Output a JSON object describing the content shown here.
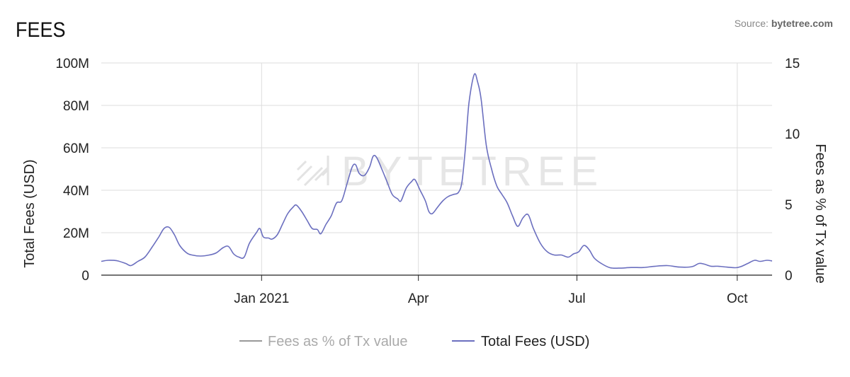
{
  "header": {
    "title": "FEES",
    "source_prefix": "Source: ",
    "source_brand": "bytetree.com"
  },
  "watermark": "BYTETREE",
  "colors": {
    "total_fees": "#6b6fbf",
    "fees_pct": "#999999",
    "grid": "#dddddd",
    "axis": "#222222"
  },
  "chart_data": {
    "type": "line",
    "title": "FEES",
    "xlabel": "",
    "ylabel": "Total Fees (USD)",
    "y2label": "Fees as % of Tx value",
    "xlim": [
      "2020-10-01",
      "2021-10-21"
    ],
    "ylim": [
      0,
      100000000
    ],
    "y2lim": [
      0,
      15
    ],
    "x_ticks": [
      {
        "date": "2021-01-01",
        "label": "Jan 2021"
      },
      {
        "date": "2021-04-01",
        "label": "Apr"
      },
      {
        "date": "2021-07-01",
        "label": "Jul"
      },
      {
        "date": "2021-10-01",
        "label": "Oct"
      }
    ],
    "y_ticks": [
      {
        "value": 0,
        "label": "0"
      },
      {
        "value": 20000000,
        "label": "20M"
      },
      {
        "value": 40000000,
        "label": "40M"
      },
      {
        "value": 60000000,
        "label": "60M"
      },
      {
        "value": 80000000,
        "label": "80M"
      },
      {
        "value": 100000000,
        "label": "100M"
      }
    ],
    "y2_ticks": [
      {
        "value": 0,
        "label": "0"
      },
      {
        "value": 5,
        "label": "5"
      },
      {
        "value": 10,
        "label": "10"
      },
      {
        "value": 15,
        "label": "15"
      }
    ],
    "grid": true,
    "legend_position": "bottom-center",
    "series": [
      {
        "name": "Fees as % of Tx value",
        "axis": "right",
        "hidden": true,
        "points": []
      },
      {
        "name": "Total Fees (USD)",
        "axis": "left",
        "points": [
          [
            "2020-10-01",
            6.5
          ],
          [
            "2020-10-05",
            7.0
          ],
          [
            "2020-10-10",
            6.8
          ],
          [
            "2020-10-15",
            5.5
          ],
          [
            "2020-10-18",
            4.5
          ],
          [
            "2020-10-22",
            6.5
          ],
          [
            "2020-10-26",
            8.5
          ],
          [
            "2020-10-30",
            13
          ],
          [
            "2020-11-03",
            18
          ],
          [
            "2020-11-06",
            22
          ],
          [
            "2020-11-09",
            22.5
          ],
          [
            "2020-11-12",
            19
          ],
          [
            "2020-11-15",
            14
          ],
          [
            "2020-11-19",
            10.5
          ],
          [
            "2020-11-22",
            9.5
          ],
          [
            "2020-11-27",
            9.0
          ],
          [
            "2020-12-02",
            9.5
          ],
          [
            "2020-12-06",
            10.5
          ],
          [
            "2020-12-10",
            13
          ],
          [
            "2020-12-13",
            13.5
          ],
          [
            "2020-12-16",
            10
          ],
          [
            "2020-12-19",
            8.5
          ],
          [
            "2020-12-22",
            8.5
          ],
          [
            "2020-12-25",
            15
          ],
          [
            "2020-12-29",
            20
          ],
          [
            "2020-12-31",
            22
          ],
          [
            "2021-01-02",
            18
          ],
          [
            "2021-01-05",
            17.5
          ],
          [
            "2021-01-07",
            17
          ],
          [
            "2021-01-10",
            19
          ],
          [
            "2021-01-13",
            24
          ],
          [
            "2021-01-16",
            29
          ],
          [
            "2021-01-19",
            32
          ],
          [
            "2021-01-21",
            33
          ],
          [
            "2021-01-24",
            30
          ],
          [
            "2021-01-27",
            26
          ],
          [
            "2021-01-30",
            22
          ],
          [
            "2021-02-02",
            21.5
          ],
          [
            "2021-02-04",
            19.5
          ],
          [
            "2021-02-07",
            24
          ],
          [
            "2021-02-10",
            28
          ],
          [
            "2021-02-13",
            34
          ],
          [
            "2021-02-16",
            35
          ],
          [
            "2021-02-19",
            43
          ],
          [
            "2021-02-22",
            51
          ],
          [
            "2021-02-24",
            52
          ],
          [
            "2021-02-26",
            48
          ],
          [
            "2021-03-01",
            47
          ],
          [
            "2021-03-04",
            51
          ],
          [
            "2021-03-06",
            56
          ],
          [
            "2021-03-08",
            55.5
          ],
          [
            "2021-03-11",
            50
          ],
          [
            "2021-03-14",
            44
          ],
          [
            "2021-03-17",
            38
          ],
          [
            "2021-03-20",
            36
          ],
          [
            "2021-03-22",
            35
          ],
          [
            "2021-03-25",
            41
          ],
          [
            "2021-03-28",
            44
          ],
          [
            "2021-03-30",
            45
          ],
          [
            "2021-04-02",
            40
          ],
          [
            "2021-04-05",
            35
          ],
          [
            "2021-04-07",
            30
          ],
          [
            "2021-04-09",
            29
          ],
          [
            "2021-04-12",
            32
          ],
          [
            "2021-04-15",
            35
          ],
          [
            "2021-04-18",
            37
          ],
          [
            "2021-04-21",
            38
          ],
          [
            "2021-04-24",
            39
          ],
          [
            "2021-04-26",
            44
          ],
          [
            "2021-04-28",
            60
          ],
          [
            "2021-04-30",
            81
          ],
          [
            "2021-05-03",
            94.5
          ],
          [
            "2021-05-05",
            91
          ],
          [
            "2021-05-07",
            83
          ],
          [
            "2021-05-10",
            61
          ],
          [
            "2021-05-13",
            50
          ],
          [
            "2021-05-16",
            42
          ],
          [
            "2021-05-19",
            38
          ],
          [
            "2021-05-22",
            34
          ],
          [
            "2021-05-25",
            28
          ],
          [
            "2021-05-28",
            23
          ],
          [
            "2021-05-31",
            27
          ],
          [
            "2021-06-03",
            28.5
          ],
          [
            "2021-06-06",
            22
          ],
          [
            "2021-06-10",
            15
          ],
          [
            "2021-06-14",
            11
          ],
          [
            "2021-06-18",
            9.5
          ],
          [
            "2021-06-22",
            9.5
          ],
          [
            "2021-06-26",
            8.5
          ],
          [
            "2021-06-29",
            10
          ],
          [
            "2021-07-02",
            11
          ],
          [
            "2021-07-05",
            14
          ],
          [
            "2021-07-08",
            12
          ],
          [
            "2021-07-11",
            8
          ],
          [
            "2021-07-15",
            5.5
          ],
          [
            "2021-07-20",
            3.5
          ],
          [
            "2021-07-25",
            3.3
          ],
          [
            "2021-08-01",
            3.6
          ],
          [
            "2021-08-08",
            3.6
          ],
          [
            "2021-08-15",
            4.2
          ],
          [
            "2021-08-22",
            4.5
          ],
          [
            "2021-08-29",
            3.8
          ],
          [
            "2021-09-05",
            4.0
          ],
          [
            "2021-09-09",
            5.5
          ],
          [
            "2021-09-12",
            5.2
          ],
          [
            "2021-09-16",
            4.2
          ],
          [
            "2021-09-20",
            4.2
          ],
          [
            "2021-09-25",
            3.8
          ],
          [
            "2021-09-30",
            3.5
          ],
          [
            "2021-10-03",
            4.0
          ],
          [
            "2021-10-07",
            5.5
          ],
          [
            "2021-10-11",
            7.0
          ],
          [
            "2021-10-14",
            6.5
          ],
          [
            "2021-10-18",
            7.0
          ],
          [
            "2021-10-21",
            6.7
          ]
        ]
      }
    ]
  }
}
